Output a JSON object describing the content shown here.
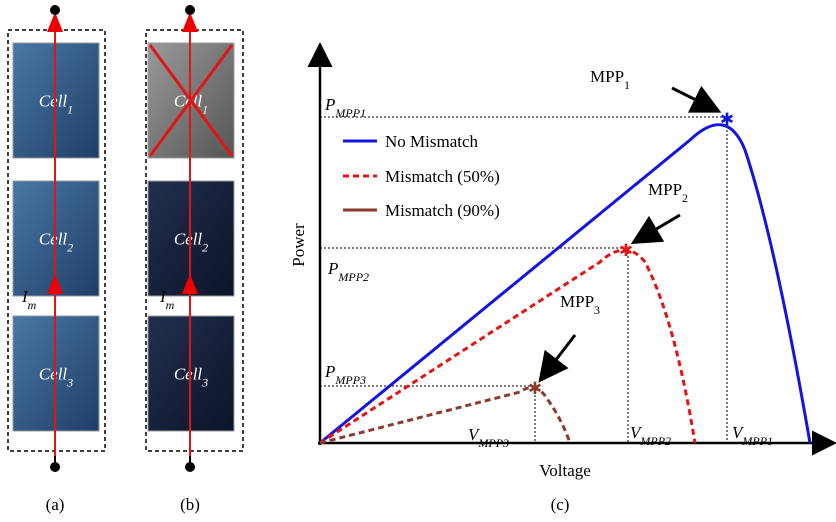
{
  "panels": [
    {
      "label": "(a)",
      "current": {
        "base": "I",
        "sub": "m"
      },
      "cells": [
        {
          "base": "Cell",
          "sub": "1"
        },
        {
          "base": "Cell",
          "sub": "2"
        },
        {
          "base": "Cell",
          "sub": "3"
        }
      ]
    },
    {
      "label": "(b)",
      "current": {
        "base": "I",
        "sub": "m"
      },
      "cells": [
        {
          "base": "Cell",
          "sub": "1"
        },
        {
          "base": "Cell",
          "sub": "2"
        },
        {
          "base": "Cell",
          "sub": "3"
        }
      ]
    }
  ],
  "chart": {
    "label": "(c)",
    "y_axis": "Power",
    "x_axis": "Voltage",
    "legend": [
      "No Mismatch",
      "Mismatch (50%)",
      "Mismatch (90%)"
    ],
    "mpp": [
      {
        "base": "MPP",
        "sub": "1"
      },
      {
        "base": "MPP",
        "sub": "2"
      },
      {
        "base": "MPP",
        "sub": "3"
      }
    ],
    "power_labels": [
      {
        "base": "P",
        "sub": "MPP1"
      },
      {
        "base": "P",
        "sub": "MPP2"
      },
      {
        "base": "P",
        "sub": "MPP3"
      }
    ],
    "voltage_labels": [
      {
        "base": "V",
        "sub": "MPP1"
      },
      {
        "base": "V",
        "sub": "MPP2"
      },
      {
        "base": "V",
        "sub": "MPP3"
      }
    ]
  }
}
